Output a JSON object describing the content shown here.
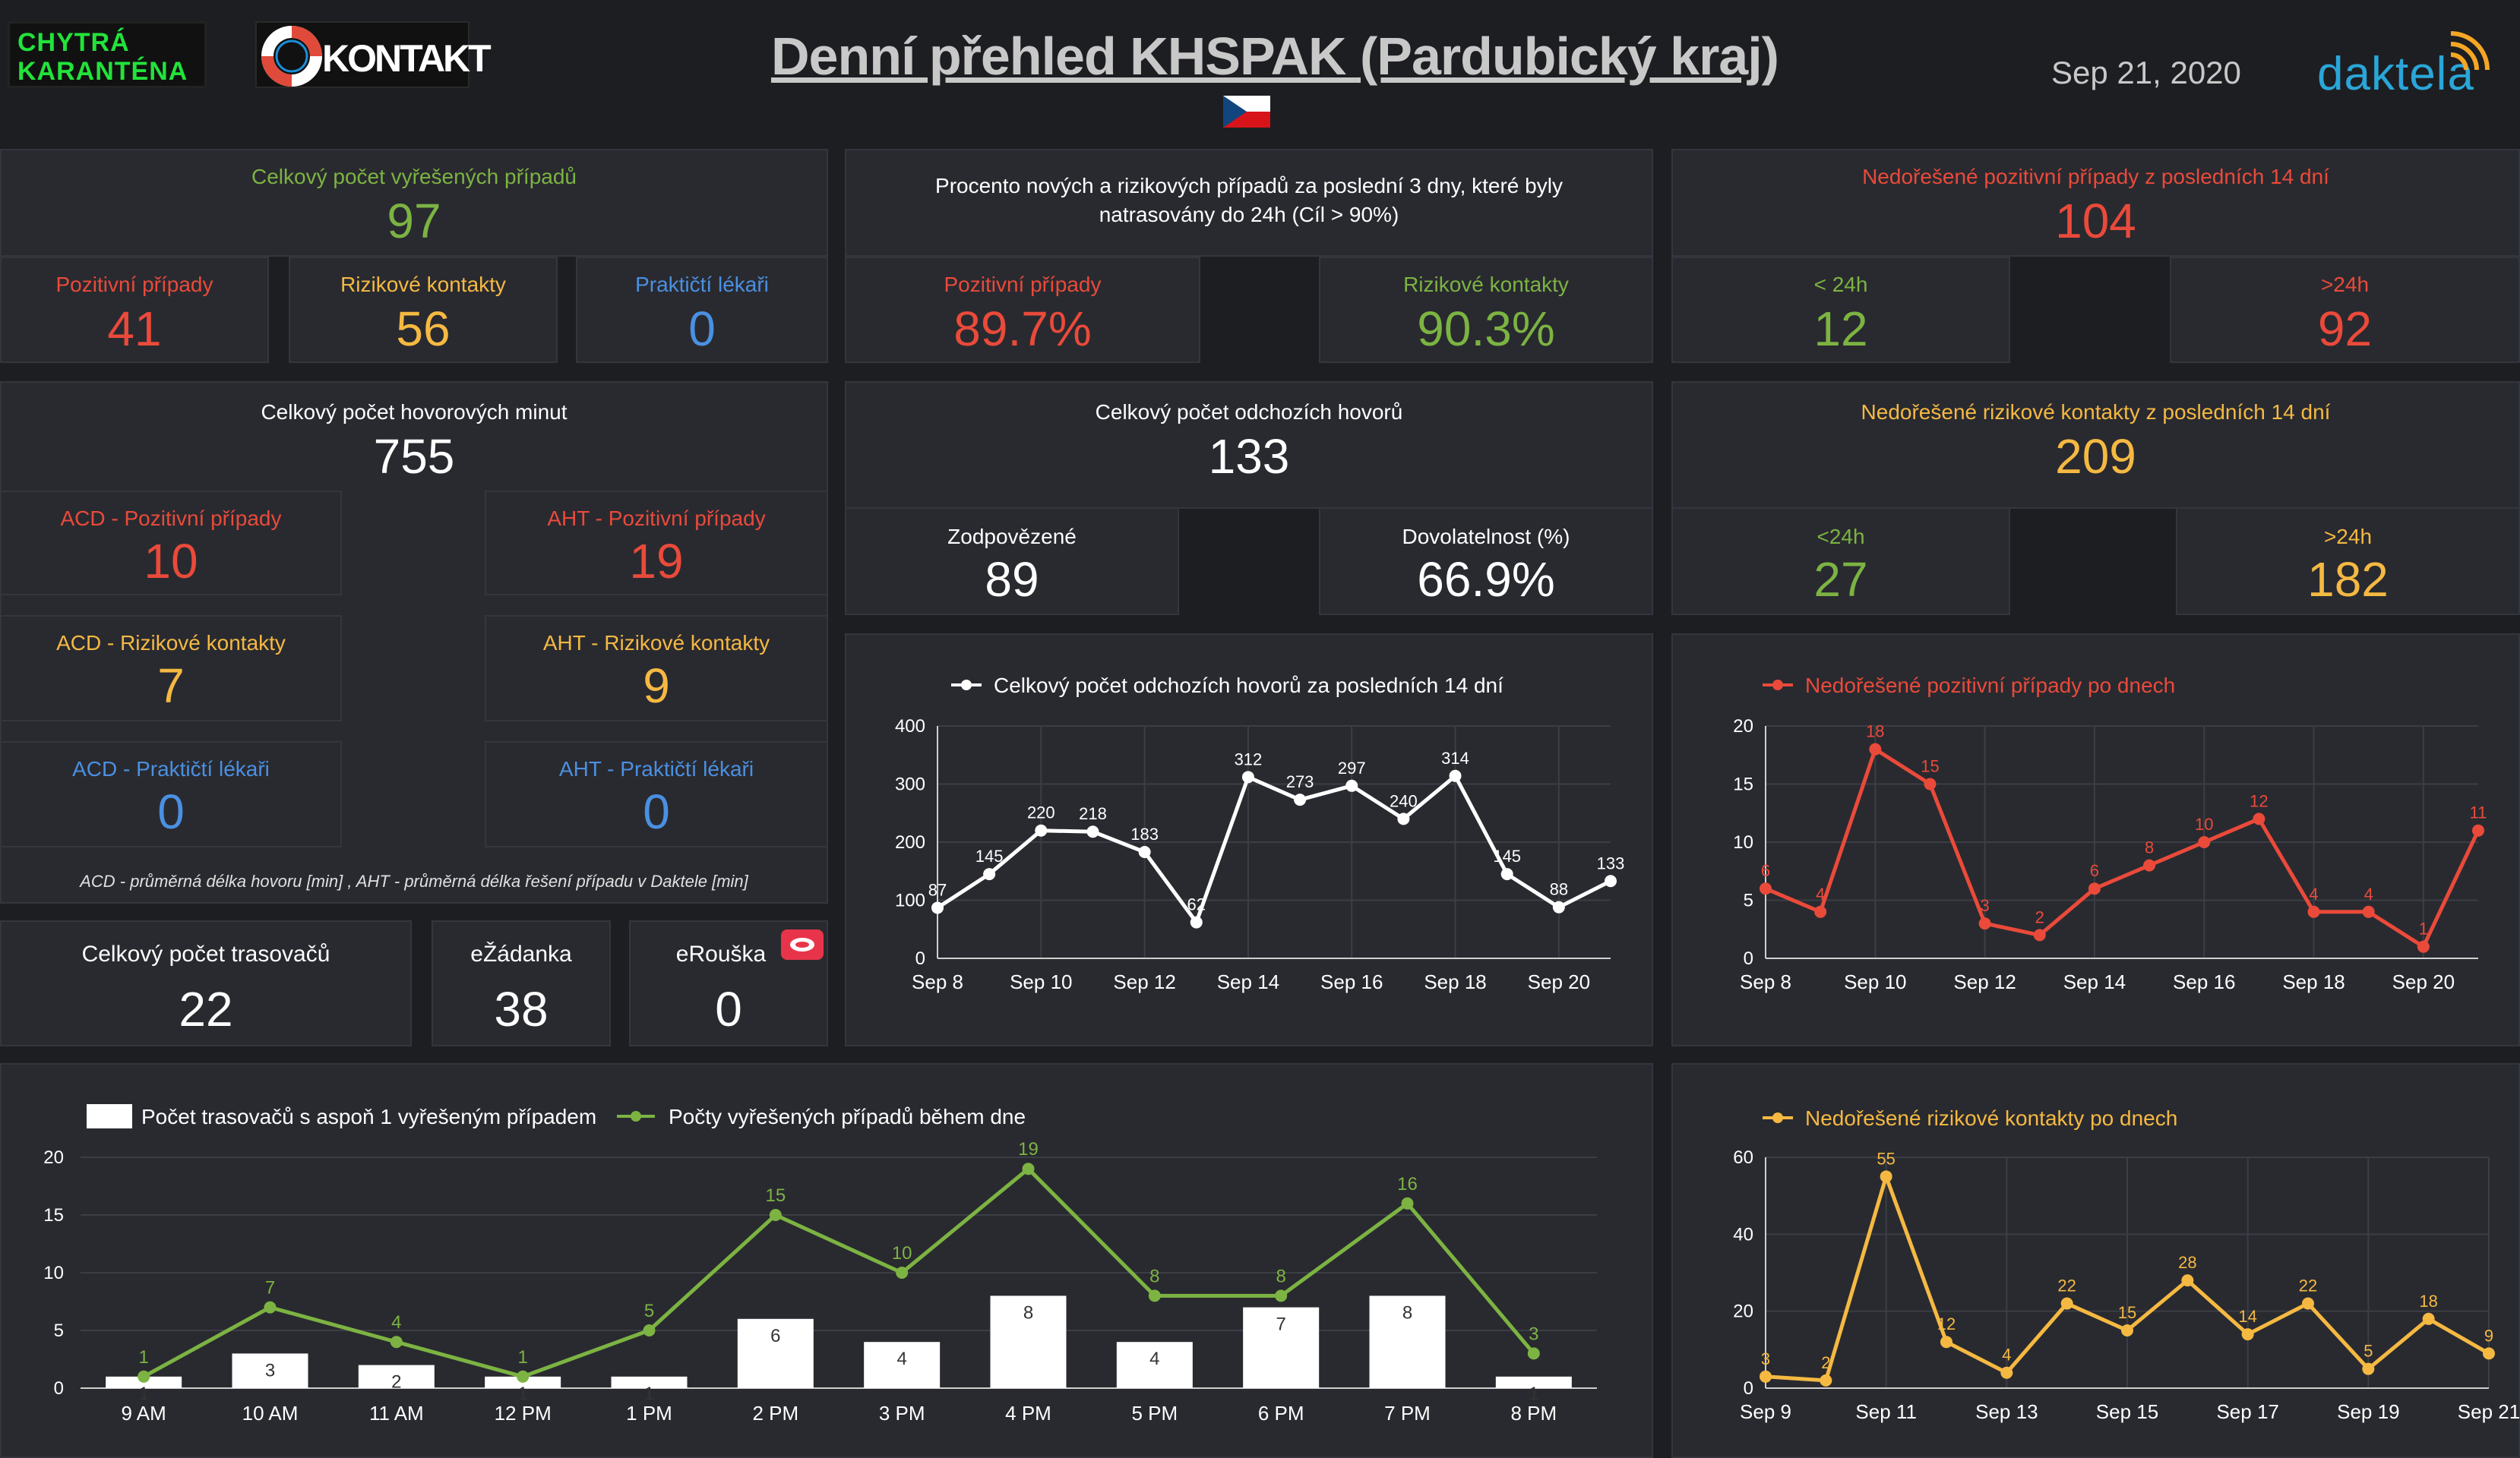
{
  "header": {
    "logo_left": "CHYTRÁ KARANTÉNA",
    "logo_kontakt": "KONTAKT",
    "title": "Denní přehled KHSPAK (Pardubický kraj)",
    "date": "Sep 21, 2020",
    "brand": "daktela"
  },
  "colors": {
    "red": "#ea4a3a",
    "green": "#7cb342",
    "blue": "#4a90e2",
    "yellow": "#f5b942",
    "card": "#292a30",
    "bg": "#1d1e22"
  },
  "resolved": {
    "label": "Celkový počet vyřešených případů",
    "value": "97",
    "positive_label": "Pozitivní případy",
    "positive_value": "41",
    "risk_label": "Rizikové kontakty",
    "risk_value": "56",
    "doctors_label": "Praktičtí lékaři",
    "doctors_value": "0"
  },
  "traced": {
    "label": "Procento nových a rizikových případů za poslední 3 dny, které byly natrasovány do 24h (Cíl > 90%)",
    "positive_label": "Pozitivní případy",
    "positive_value": "89.7%",
    "risk_label": "Rizikové kontakty",
    "risk_value": "90.3%"
  },
  "unresolved_positive": {
    "label": "Nedořešené pozitivní případy z posledních 14 dní",
    "value": "104",
    "lt_label": "< 24h",
    "lt_value": "12",
    "gt_label": ">24h",
    "gt_value": "92"
  },
  "minutes": {
    "label": "Celkový počet hovorových minut",
    "value": "755",
    "acd_pos_label": "ACD - Pozitivní případy",
    "acd_pos_value": "10",
    "aht_pos_label": "AHT - Pozitivní případy",
    "aht_pos_value": "19",
    "acd_risk_label": "ACD - Rizikové kontakty",
    "acd_risk_value": "7",
    "aht_risk_label": "AHT - Rizikové kontakty",
    "aht_risk_value": "9",
    "acd_doc_label": "ACD - Praktičtí lékaři",
    "acd_doc_value": "0",
    "aht_doc_label": "AHT - Praktičtí lékaři",
    "aht_doc_value": "0",
    "note": "ACD - průměrná délka hovoru [min] , AHT - průměrná délka řešení případu v Daktele [min]"
  },
  "calls": {
    "label": "Celkový počet odchozích hovorů",
    "value": "133",
    "answered_label": "Zodpovězené",
    "answered_value": "89",
    "reach_label": "Dovolatelnost (%)",
    "reach_value": "66.9%"
  },
  "unresolved_risk": {
    "label": "Nedořešené rizikové kontakty z posledních 14 dní",
    "value": "209",
    "lt_label": "<24h",
    "lt_value": "27",
    "gt_label": ">24h",
    "gt_value": "182"
  },
  "tracers": {
    "total_label": "Celkový počet trasovačů",
    "total_value": "22",
    "ezadanka_label": "eŽádanka",
    "ezadanka_value": "38",
    "erouska_label": "eRouška",
    "erouska_value": "0"
  },
  "chart_data": [
    {
      "id": "calls14",
      "type": "line",
      "legend": "Celkový počet odchozích hovorů za posledních 14 dní",
      "x": [
        "Sep 8",
        "Sep 9",
        "Sep 10",
        "Sep 11",
        "Sep 12",
        "Sep 13",
        "Sep 14",
        "Sep 15",
        "Sep 16",
        "Sep 17",
        "Sep 18",
        "Sep 19",
        "Sep 20",
        "Sep 21"
      ],
      "xticks": [
        "Sep 8",
        "Sep 10",
        "Sep 12",
        "Sep 14",
        "Sep 16",
        "Sep 18",
        "Sep 20"
      ],
      "values": [
        87,
        145,
        220,
        218,
        183,
        62,
        312,
        273,
        297,
        240,
        314,
        145,
        88,
        133
      ],
      "ylim": [
        0,
        400
      ],
      "yticks": [
        0,
        100,
        200,
        300,
        400
      ],
      "color": "#ffffff"
    },
    {
      "id": "pos_daily",
      "type": "line",
      "legend": "Nedořešené pozitivní případy po dnech",
      "x": [
        "Sep 8",
        "Sep 9",
        "Sep 10",
        "Sep 11",
        "Sep 12",
        "Sep 13",
        "Sep 14",
        "Sep 15",
        "Sep 16",
        "Sep 17",
        "Sep 18",
        "Sep 19",
        "Sep 20",
        "Sep 21"
      ],
      "xticks": [
        "Sep 8",
        "Sep 10",
        "Sep 12",
        "Sep 14",
        "Sep 16",
        "Sep 18",
        "Sep 20"
      ],
      "values": [
        6,
        4,
        18,
        15,
        3,
        2,
        6,
        8,
        10,
        12,
        4,
        4,
        1,
        11
      ],
      "ylim": [
        0,
        20
      ],
      "yticks": [
        0,
        5,
        10,
        15,
        20
      ],
      "color": "#ea4a3a"
    },
    {
      "id": "hourly",
      "type": "bar+line",
      "bar_legend": "Počet trasovačů s aspoň 1 vyřešeným případem",
      "line_legend": "Počty vyřešených případů během dne",
      "categories": [
        "9 AM",
        "10 AM",
        "11 AM",
        "12 PM",
        "1 PM",
        "2 PM",
        "3 PM",
        "4 PM",
        "5 PM",
        "6 PM",
        "7 PM",
        "8 PM"
      ],
      "bars": [
        1,
        3,
        2,
        1,
        1,
        6,
        4,
        8,
        4,
        7,
        8,
        1
      ],
      "line": [
        1,
        7,
        4,
        1,
        5,
        15,
        10,
        19,
        8,
        8,
        16,
        3
      ],
      "ylim": [
        0,
        20
      ],
      "yticks": [
        0,
        5,
        10,
        15,
        20
      ],
      "bar_color": "#ffffff",
      "line_color": "#7cb342"
    },
    {
      "id": "risk_daily",
      "type": "line",
      "legend": "Nedořešené rizikové kontakty po dnech",
      "x": [
        "Sep 9",
        "Sep 10",
        "Sep 11",
        "Sep 12",
        "Sep 13",
        "Sep 14",
        "Sep 15",
        "Sep 16",
        "Sep 17",
        "Sep 18",
        "Sep 19",
        "Sep 20",
        "Sep 21"
      ],
      "xticks": [
        "Sep 9",
        "Sep 11",
        "Sep 13",
        "Sep 15",
        "Sep 17",
        "Sep 19",
        "Sep 21"
      ],
      "values": [
        3,
        2,
        55,
        12,
        4,
        22,
        15,
        28,
        14,
        22,
        5,
        18,
        9
      ],
      "ylim": [
        0,
        60
      ],
      "yticks": [
        0,
        20,
        40,
        60
      ],
      "color": "#f5b942"
    }
  ]
}
